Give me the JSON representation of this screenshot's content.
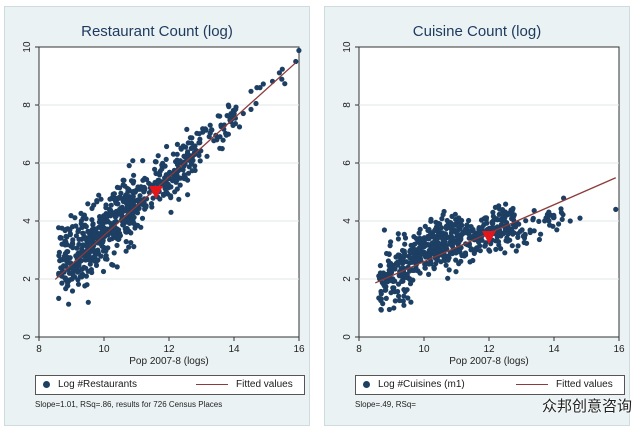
{
  "chart_data": [
    {
      "type": "scatter",
      "title": "Restaurant Count (log)",
      "xlabel": "Pop 2007-8 (logs)",
      "ylabel": "",
      "xlim": [
        8,
        16
      ],
      "ylim": [
        0,
        10
      ],
      "xticks": [
        "8",
        "10",
        "12",
        "14",
        "16"
      ],
      "yticks": [
        "0",
        "2",
        "4",
        "6",
        "8",
        "10"
      ],
      "fit": {
        "intercept": -6.6,
        "slope": 1.01
      },
      "highlight": {
        "x": 11.6,
        "y": 5.0
      },
      "series": [
        {
          "name": "Log #Restaurants",
          "cloud": [
            {
              "x0": 8.6,
              "x1": 9.5,
              "center_intercept": -6.3,
              "spread": 0.65,
              "n": 150
            },
            {
              "x0": 9.5,
              "x1": 11.0,
              "center_intercept": -6.5,
              "spread": 0.55,
              "n": 300
            },
            {
              "x0": 11.0,
              "x1": 12.8,
              "center_intercept": -6.6,
              "spread": 0.45,
              "n": 180
            },
            {
              "x0": 12.8,
              "x1": 14.2,
              "center_intercept": -6.55,
              "spread": 0.35,
              "n": 55
            },
            {
              "x0": 14.2,
              "x1": 16.0,
              "center_intercept": -6.5,
              "spread": 0.2,
              "n": 12
            }
          ],
          "points": [
            {
              "x": 15.9,
              "y": 9.5
            },
            {
              "x": 14.8,
              "y": 8.6
            }
          ]
        },
        {
          "name": "Fitted values"
        }
      ],
      "legend_position": "bottom",
      "grid": true
    },
    {
      "type": "scatter",
      "title": "Cuisine Count (log)",
      "xlabel": "Pop 2007-8 (logs)",
      "ylabel": "",
      "xlim": [
        8,
        16
      ],
      "ylim": [
        0,
        10
      ],
      "xticks": [
        "8",
        "10",
        "12",
        "14",
        "16"
      ],
      "yticks": [
        "0",
        "2",
        "4",
        "6",
        "8",
        "10"
      ],
      "fit": {
        "intercept": -2.3,
        "slope": 0.49
      },
      "highlight": {
        "x": 12.0,
        "y": 3.45
      },
      "series": [
        {
          "name": "Log #Cuisines (m1)",
          "cloud": [
            {
              "x0": 8.6,
              "x1": 9.6,
              "center_intercept": -2.35,
              "spread": 0.55,
              "n": 130
            },
            {
              "x0": 9.6,
              "x1": 11.2,
              "center_intercept": -1.95,
              "spread": 0.45,
              "n": 280
            },
            {
              "x0": 11.2,
              "x1": 12.8,
              "center_intercept": -2.3,
              "spread": 0.35,
              "n": 160
            },
            {
              "x0": 12.8,
              "x1": 14.3,
              "center_intercept": -2.75,
              "spread": 0.25,
              "n": 45
            }
          ],
          "points": [
            {
              "x": 15.9,
              "y": 4.4
            },
            {
              "x": 14.8,
              "y": 4.1
            },
            {
              "x": 14.5,
              "y": 4.0
            }
          ]
        },
        {
          "name": "Fitted values"
        }
      ],
      "legend_position": "bottom",
      "grid": true
    }
  ],
  "notes": [
    "Slope=1.01, RSq=.86, results for 726 Census Places",
    "Slope=.49, RSq="
  ],
  "watermark": "众邦创意咨询",
  "colors": {
    "points": "#1c3f63",
    "fit_line": "#8e3a3a",
    "highlight": "#e3161c",
    "plot_bg": "#ffffff",
    "panel_bg": "#eaf2f3"
  }
}
